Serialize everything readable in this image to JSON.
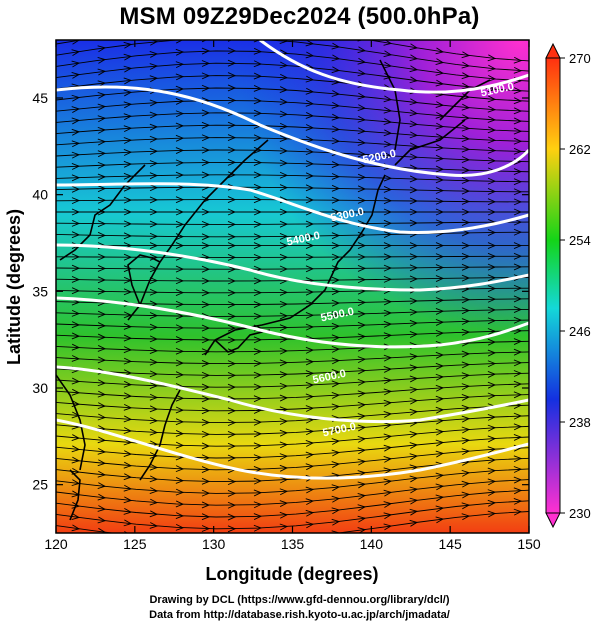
{
  "title": "MSM 09Z29Dec2024 (500.0hPa)",
  "xlabel": "Longitude (degrees)",
  "ylabel": "Latitude  (degrees)",
  "x_ticks": [
    "120",
    "125",
    "130",
    "135",
    "140",
    "145",
    "150"
  ],
  "y_ticks": [
    "25",
    "30",
    "35",
    "40",
    "45"
  ],
  "colorbar_ticks": [
    "270",
    "262",
    "254",
    "246",
    "238",
    "230"
  ],
  "contour_labels": [
    "5100.0",
    "5200.0",
    "5300.0",
    "5400.0",
    "5500.0",
    "5600.0",
    "5700.0"
  ],
  "credit_line1": "Drawing by DCL (https://www.gfd-dennou.org/library/dcl/)",
  "credit_line2": "Data from http://database.rish.kyoto-u.ac.jp/arch/jmadata/",
  "colors": {
    "cold": "#d020c0",
    "mid_blue": "#1f2ee0",
    "cyan": "#20d6c8",
    "green": "#24c02a",
    "yellow": "#e6dc10",
    "warm": "#ee4a10",
    "contour": "#ffffff"
  },
  "chart_data": {
    "type": "heatmap",
    "field": "temperature (K) with geopotential height contours and wind streamlines",
    "xlim": [
      120,
      150
    ],
    "ylim": [
      22.5,
      48
    ],
    "colorbar_range": [
      230,
      270
    ],
    "contour_levels": [
      5100,
      5200,
      5300,
      5400,
      5500,
      5600,
      5700
    ]
  }
}
